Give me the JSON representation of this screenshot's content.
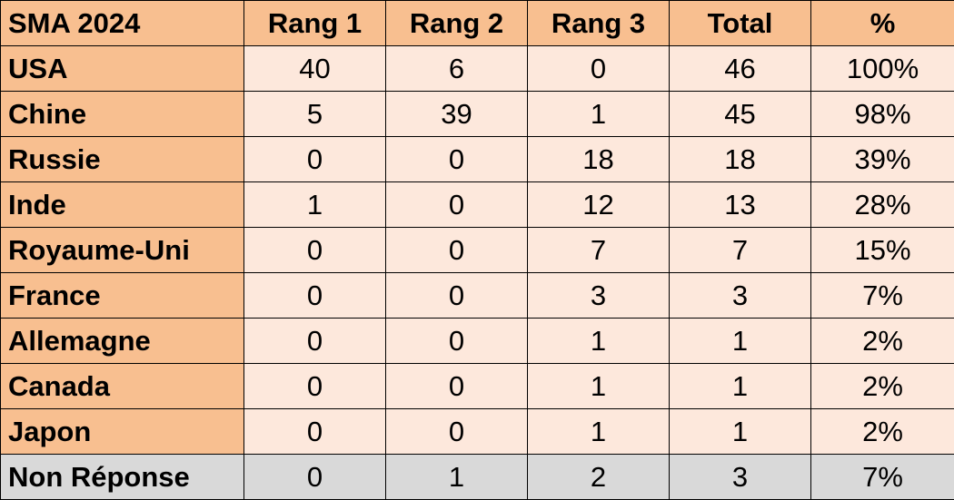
{
  "chart_data": {
    "type": "table",
    "columns": [
      "SMA 2024",
      "Rang 1",
      "Rang 2",
      "Rang 3",
      "Total",
      "%"
    ],
    "rows": [
      {
        "label": "USA",
        "values": [
          "40",
          "6",
          "0",
          "46",
          "100%"
        ]
      },
      {
        "label": "Chine",
        "values": [
          "5",
          "39",
          "1",
          "45",
          "98%"
        ]
      },
      {
        "label": "Russie",
        "values": [
          "0",
          "0",
          "18",
          "18",
          "39%"
        ]
      },
      {
        "label": "Inde",
        "values": [
          "1",
          "0",
          "12",
          "13",
          "28%"
        ]
      },
      {
        "label": "Royaume-Uni",
        "values": [
          "0",
          "0",
          "7",
          "7",
          "15%"
        ]
      },
      {
        "label": "France",
        "values": [
          "0",
          "0",
          "3",
          "3",
          "7%"
        ]
      },
      {
        "label": "Allemagne",
        "values": [
          "0",
          "0",
          "1",
          "1",
          "2%"
        ]
      },
      {
        "label": "Canada",
        "values": [
          "0",
          "0",
          "1",
          "1",
          "2%"
        ]
      },
      {
        "label": "Japon",
        "values": [
          "0",
          "0",
          "1",
          "1",
          "2%"
        ]
      },
      {
        "label": "Non Réponse",
        "values": [
          "0",
          "1",
          "2",
          "3",
          "7%"
        ]
      }
    ]
  },
  "colors": {
    "header": "#f8bf90",
    "label_column": "#f8bf90",
    "cell": "#fde8dc",
    "last_row": "#d9d9d9"
  }
}
